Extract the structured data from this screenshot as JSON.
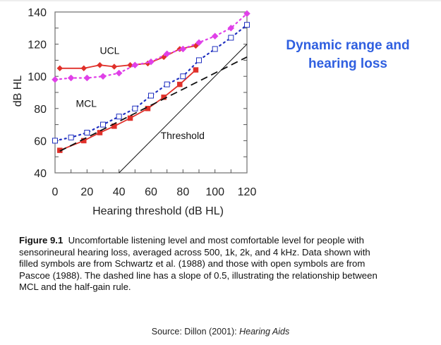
{
  "slide_title": "Dynamic range and hearing loss",
  "caption": {
    "label": "Figure 9.1",
    "text": "Uncomfortable listening level and most comfortable level for people with sensorineural hearing loss, averaged across 500, 1k, 2k, and 4 kHz. Data shown with filled symbols are from Schwartz et al. (1988) and those with open symbols are from Pascoe (1988). The dashed line has a slope of 0.5, illustrating the relationship between MCL and the half-gain rule."
  },
  "source": {
    "prefix": "Source:  Dillon (2001): ",
    "title": "Hearing Aids"
  },
  "chart_data": {
    "type": "line",
    "title": "",
    "xlabel": "Hearing threshold (dB HL)",
    "ylabel": "dB HL",
    "xlim": [
      0,
      120
    ],
    "ylim": [
      40,
      140
    ],
    "xticks": [
      0,
      20,
      40,
      60,
      80,
      100,
      120
    ],
    "yticks": [
      40,
      60,
      80,
      100,
      120,
      140
    ],
    "grid": false,
    "annotations": [
      {
        "text": "UCL",
        "x": 28,
        "y": 114
      },
      {
        "text": "MCL",
        "x": 13,
        "y": 81
      },
      {
        "text": "Threshold",
        "x": 66,
        "y": 61
      }
    ],
    "series": [
      {
        "name": "UCL (Schwartz et al. 1988, filled)",
        "marker": "diamond-filled",
        "style": "solid",
        "color": "#e0302a",
        "x": [
          3,
          18,
          28,
          37,
          47,
          58,
          68,
          78,
          88
        ],
        "y": [
          105,
          105,
          107,
          106,
          107,
          108,
          112,
          117,
          119
        ]
      },
      {
        "name": "UCL (Pascoe 1988, open)",
        "marker": "diamond",
        "style": "dotted",
        "color": "#e040e8",
        "x": [
          0,
          10,
          20,
          30,
          40,
          50,
          60,
          70,
          80,
          90,
          100,
          110,
          120
        ],
        "y": [
          98,
          99,
          99,
          100,
          102,
          107,
          109,
          114,
          117,
          121,
          125,
          130,
          139
        ]
      },
      {
        "name": "MCL (Schwartz et al. 1988, filled)",
        "marker": "square-filled",
        "style": "solid",
        "color": "#e0302a",
        "x": [
          3,
          18,
          28,
          37,
          47,
          58,
          68,
          78,
          88
        ],
        "y": [
          54,
          60,
          65,
          69,
          74,
          80,
          87,
          95,
          104
        ]
      },
      {
        "name": "MCL (Pascoe 1988, open)",
        "marker": "square-open",
        "style": "dotted",
        "color": "#2030c0",
        "x": [
          0,
          10,
          20,
          30,
          40,
          50,
          60,
          70,
          80,
          90,
          100,
          110,
          120
        ],
        "y": [
          60,
          62,
          65,
          70,
          75,
          80,
          88,
          95,
          100,
          110,
          117,
          124,
          132
        ]
      },
      {
        "name": "Half-gain line (slope 0.5)",
        "marker": "none",
        "style": "dashed",
        "color": "#111111",
        "x": [
          3,
          120
        ],
        "y": [
          53.5,
          112
        ]
      },
      {
        "name": "Threshold",
        "marker": "none",
        "style": "solid-thin",
        "color": "#111111",
        "x": [
          40,
          120
        ],
        "y": [
          40,
          120
        ]
      }
    ]
  }
}
